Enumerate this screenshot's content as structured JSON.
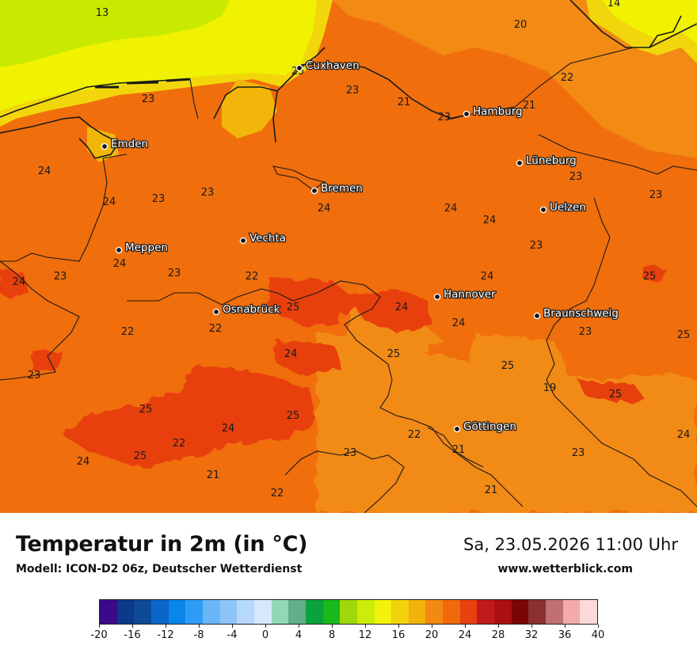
{
  "map": {
    "cities": [
      {
        "name": "Cuxhaven"
      },
      {
        "name": "Hamburg"
      },
      {
        "name": "Emden"
      },
      {
        "name": "Lüneburg"
      },
      {
        "name": "Bremen"
      },
      {
        "name": "Uelzen"
      },
      {
        "name": "Vechta"
      },
      {
        "name": "Meppen"
      },
      {
        "name": "Hannover"
      },
      {
        "name": "Osnabrück"
      },
      {
        "name": "Braunschweig"
      },
      {
        "name": "Göttingen"
      }
    ],
    "values": [
      "13",
      "14",
      "20",
      "25",
      "23",
      "23",
      "22",
      "21",
      "21",
      "23",
      "24",
      "23",
      "24",
      "23",
      "23",
      "24",
      "24",
      "24",
      "23",
      "24",
      "23",
      "24",
      "23",
      "22",
      "23",
      "25",
      "24",
      "25",
      "24",
      "22",
      "22",
      "24",
      "23",
      "25",
      "24",
      "25",
      "25",
      "19",
      "25",
      "23",
      "25",
      "25",
      "24",
      "22",
      "22",
      "25",
      "24",
      "23",
      "21",
      "23",
      "21",
      "24",
      "22",
      "21"
    ],
    "colors": {
      "land": "#f06e0c",
      "hot": "#e8400e",
      "warm": "#f28a14",
      "coast": "#f2b60a",
      "coastLight": "#f2d60c",
      "seaYellow": "#f0f200",
      "seaGreen": "#c8ea00",
      "lines": "#1a1a1a"
    }
  },
  "footer": {
    "title": "Temperatur in 2m (in °C)",
    "subtitle": "Modell: ICON-D2 06z, Deutscher Wetterdienst",
    "datetime": "Sa, 23.05.2026 11:00 Uhr",
    "website": "www.wetterblick.com"
  },
  "scale": {
    "colors": [
      "#3a0a8a",
      "#0a3a88",
      "#0e4a98",
      "#0a66c8",
      "#0a86ea",
      "#2e9cf6",
      "#6ab6f6",
      "#8ec4f8",
      "#b6d8fa",
      "#d6e8fc",
      "#92d8b8",
      "#62ae8a",
      "#0aa23a",
      "#1ab81a",
      "#9ed80a",
      "#ccec0a",
      "#f2f20a",
      "#f2d20a",
      "#f2b20a",
      "#f28a12",
      "#f06a0c",
      "#e8400e",
      "#c21a1a",
      "#aa1010",
      "#7a0606",
      "#8a3030",
      "#c07070",
      "#f2aaaa",
      "#fcdada"
    ],
    "labels": [
      "-20",
      "-16",
      "-12",
      "-8",
      "-4",
      "0",
      "4",
      "8",
      "12",
      "16",
      "20",
      "24",
      "28",
      "32",
      "36",
      "40"
    ],
    "min": -20,
    "max": 40
  }
}
